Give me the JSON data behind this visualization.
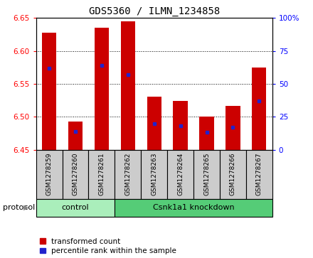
{
  "title": "GDS5360 / ILMN_1234858",
  "samples": [
    "GSM1278259",
    "GSM1278260",
    "GSM1278261",
    "GSM1278262",
    "GSM1278263",
    "GSM1278264",
    "GSM1278265",
    "GSM1278266",
    "GSM1278267"
  ],
  "transformed_count": [
    6.628,
    6.493,
    6.635,
    6.645,
    6.53,
    6.524,
    6.5,
    6.516,
    6.575
  ],
  "percentile_rank": [
    62,
    14,
    64,
    57,
    20,
    18,
    13,
    17,
    37
  ],
  "ylim_left": [
    6.45,
    6.65
  ],
  "ylim_right": [
    0,
    100
  ],
  "yticks_left": [
    6.45,
    6.5,
    6.55,
    6.6,
    6.65
  ],
  "yticks_right": [
    0,
    25,
    50,
    75,
    100
  ],
  "bar_color": "#cc0000",
  "blue_color": "#2222cc",
  "bar_bottom": 6.45,
  "bar_width": 0.55,
  "groups": [
    {
      "label": "control",
      "start": 0,
      "end": 3,
      "color": "#aaeebb"
    },
    {
      "label": "Csnk1a1 knockdown",
      "start": 3,
      "end": 9,
      "color": "#55cc77"
    }
  ],
  "protocol_label": "protocol",
  "legend_red": "transformed count",
  "legend_blue": "percentile rank within the sample",
  "title_fontsize": 10,
  "tick_fontsize": 7.5,
  "sample_fontsize": 6.5,
  "proto_fontsize": 8,
  "legend_fontsize": 7.5
}
